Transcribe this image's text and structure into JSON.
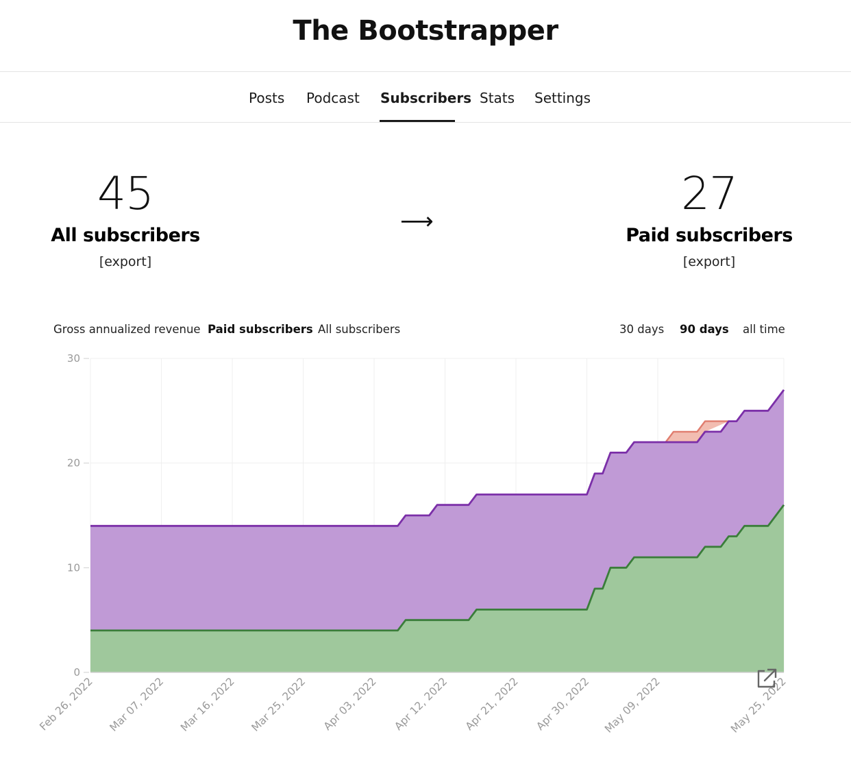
{
  "header": {
    "title": "The Bootstrapper"
  },
  "nav": {
    "items": [
      {
        "label": "Posts",
        "active": false
      },
      {
        "label": "Podcast",
        "active": false
      },
      {
        "label": "Subscribers",
        "active": true
      },
      {
        "label": "Stats",
        "active": false
      },
      {
        "label": "Settings",
        "active": false
      }
    ]
  },
  "stats": {
    "all": {
      "value": "45",
      "label": "All subscribers",
      "export": "[export]"
    },
    "paid": {
      "value": "27",
      "label": "Paid subscribers",
      "export": "[export]"
    },
    "arrow": "⟶"
  },
  "chart_controls": {
    "metrics": [
      {
        "label": "Gross annualized revenue",
        "active": false
      },
      {
        "label": "Paid subscribers",
        "active": true
      },
      {
        "label": "All subscribers",
        "active": false
      }
    ],
    "ranges": [
      {
        "label": "30 days",
        "active": false
      },
      {
        "label": "90 days",
        "active": true
      },
      {
        "label": "all time",
        "active": false
      }
    ]
  },
  "icons": {
    "open_external": "external-link-icon"
  },
  "chart_data": {
    "type": "area",
    "title": "",
    "xlabel": "",
    "ylabel": "",
    "ylim": [
      0,
      30
    ],
    "yticks": [
      0,
      10,
      20,
      30
    ],
    "xlim": [
      "2022-02-26",
      "2022-05-25"
    ],
    "xticks": [
      "Feb 26, 2022",
      "Mar 07, 2022",
      "Mar 16, 2022",
      "Mar 25, 2022",
      "Apr 03, 2022",
      "Apr 12, 2022",
      "Apr 21, 2022",
      "Apr 30, 2022",
      "May 09, 2022",
      "May 25, 2022"
    ],
    "grid": true,
    "colors": {
      "total_line": "#7b2fa8",
      "total_fill": "#c09ad6",
      "base_line": "#3a7d3a",
      "base_fill": "#9fc89c",
      "churn_line": "#e07d6e",
      "churn_fill": "#f2bdb1"
    },
    "series": [
      {
        "stack": "total",
        "points": [
          [
            "2022-02-26",
            14
          ],
          [
            "2022-04-06",
            14
          ],
          [
            "2022-04-07",
            15
          ],
          [
            "2022-04-10",
            15
          ],
          [
            "2022-04-11",
            16
          ],
          [
            "2022-04-15",
            16
          ],
          [
            "2022-04-16",
            17
          ],
          [
            "2022-04-30",
            17
          ],
          [
            "2022-05-01",
            19
          ],
          [
            "2022-05-02",
            19
          ],
          [
            "2022-05-03",
            21
          ],
          [
            "2022-05-05",
            21
          ],
          [
            "2022-05-06",
            22
          ],
          [
            "2022-05-14",
            22
          ],
          [
            "2022-05-15",
            23
          ],
          [
            "2022-05-17",
            23
          ],
          [
            "2022-05-18",
            24
          ],
          [
            "2022-05-19",
            24
          ],
          [
            "2022-05-20",
            25
          ],
          [
            "2022-05-23",
            25
          ],
          [
            "2022-05-24",
            26
          ],
          [
            "2022-05-25",
            27
          ]
        ]
      },
      {
        "stack": "base",
        "points": [
          [
            "2022-02-26",
            4
          ],
          [
            "2022-04-06",
            4
          ],
          [
            "2022-04-07",
            5
          ],
          [
            "2022-04-15",
            5
          ],
          [
            "2022-04-16",
            6
          ],
          [
            "2022-04-30",
            6
          ],
          [
            "2022-05-01",
            8
          ],
          [
            "2022-05-02",
            8
          ],
          [
            "2022-05-03",
            10
          ],
          [
            "2022-05-05",
            10
          ],
          [
            "2022-05-06",
            11
          ],
          [
            "2022-05-14",
            11
          ],
          [
            "2022-05-15",
            12
          ],
          [
            "2022-05-17",
            12
          ],
          [
            "2022-05-18",
            13
          ],
          [
            "2022-05-19",
            13
          ],
          [
            "2022-05-20",
            14
          ],
          [
            "2022-05-23",
            14
          ],
          [
            "2022-05-24",
            15
          ],
          [
            "2022-05-25",
            16
          ]
        ]
      },
      {
        "stack": "churn",
        "points": [
          [
            "2022-05-10",
            22
          ],
          [
            "2022-05-11",
            23
          ],
          [
            "2022-05-14",
            23
          ],
          [
            "2022-05-15",
            24
          ],
          [
            "2022-05-18",
            24
          ]
        ]
      }
    ]
  }
}
